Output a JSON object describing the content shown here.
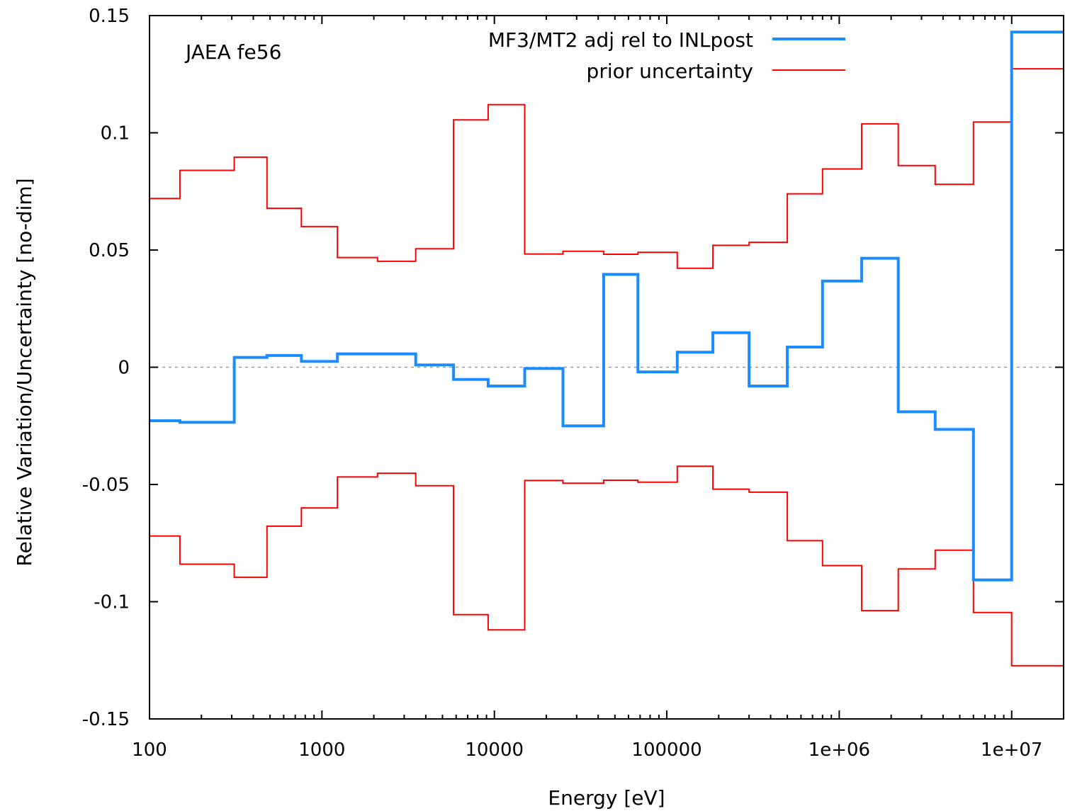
{
  "chart_data": {
    "type": "line",
    "step": true,
    "annotation": "JAEA fe56",
    "xlabel": "Energy [eV]",
    "ylabel": "Relative Variation/Uncertainty [no-dim]",
    "x_scale": "log",
    "xlim": [
      100,
      20000000
    ],
    "ylim": [
      -0.15,
      0.15
    ],
    "x_ticks": [
      {
        "value": 100,
        "label": "100"
      },
      {
        "value": 1000,
        "label": "1000"
      },
      {
        "value": 10000,
        "label": "10000"
      },
      {
        "value": 100000,
        "label": "100000"
      },
      {
        "value": 1000000,
        "label": "1e+06"
      },
      {
        "value": 10000000,
        "label": "1e+07"
      }
    ],
    "y_ticks": [
      {
        "value": 0.15,
        "label": "0.15"
      },
      {
        "value": 0.1,
        "label": "0.1"
      },
      {
        "value": 0.05,
        "label": "0.05"
      },
      {
        "value": 0,
        "label": "0"
      },
      {
        "value": -0.05,
        "label": "-0.05"
      },
      {
        "value": -0.1,
        "label": "-0.1"
      },
      {
        "value": -0.15,
        "label": "-0.15"
      }
    ],
    "zero_line": true,
    "legend_position": "top-right",
    "bin_edges": [
      100,
      150,
      310,
      480,
      760,
      1230,
      2100,
      3500,
      5800,
      9200,
      15000,
      25000,
      43000,
      68000,
      115000,
      185000,
      300000,
      500000,
      800000,
      1350000,
      2200000,
      3600000,
      6000000,
      10000000,
      20000000
    ],
    "series": [
      {
        "name": "MF3/MT2 adj rel to INLpost",
        "color": "#1a8cff",
        "values": [
          -0.0228,
          -0.0235,
          0.0042,
          0.005,
          0.0025,
          0.0057,
          0.0057,
          0.001,
          -0.0052,
          -0.008,
          -0.0005,
          -0.025,
          0.0396,
          -0.002,
          0.0064,
          0.0147,
          -0.008,
          0.0086,
          0.0368,
          0.0465,
          -0.019,
          -0.0265,
          -0.0907,
          0.143
        ]
      },
      {
        "name": "prior uncertainty",
        "color": "#ff0000",
        "symmetric": true,
        "values": [
          0.072,
          0.084,
          0.0896,
          0.0678,
          0.06,
          0.0468,
          0.0452,
          0.0505,
          0.1055,
          0.112,
          0.0483,
          0.0495,
          0.0482,
          0.049,
          0.0422,
          0.052,
          0.0533,
          0.074,
          0.0846,
          0.1038,
          0.086,
          0.078,
          0.1046,
          0.1273
        ]
      }
    ]
  }
}
